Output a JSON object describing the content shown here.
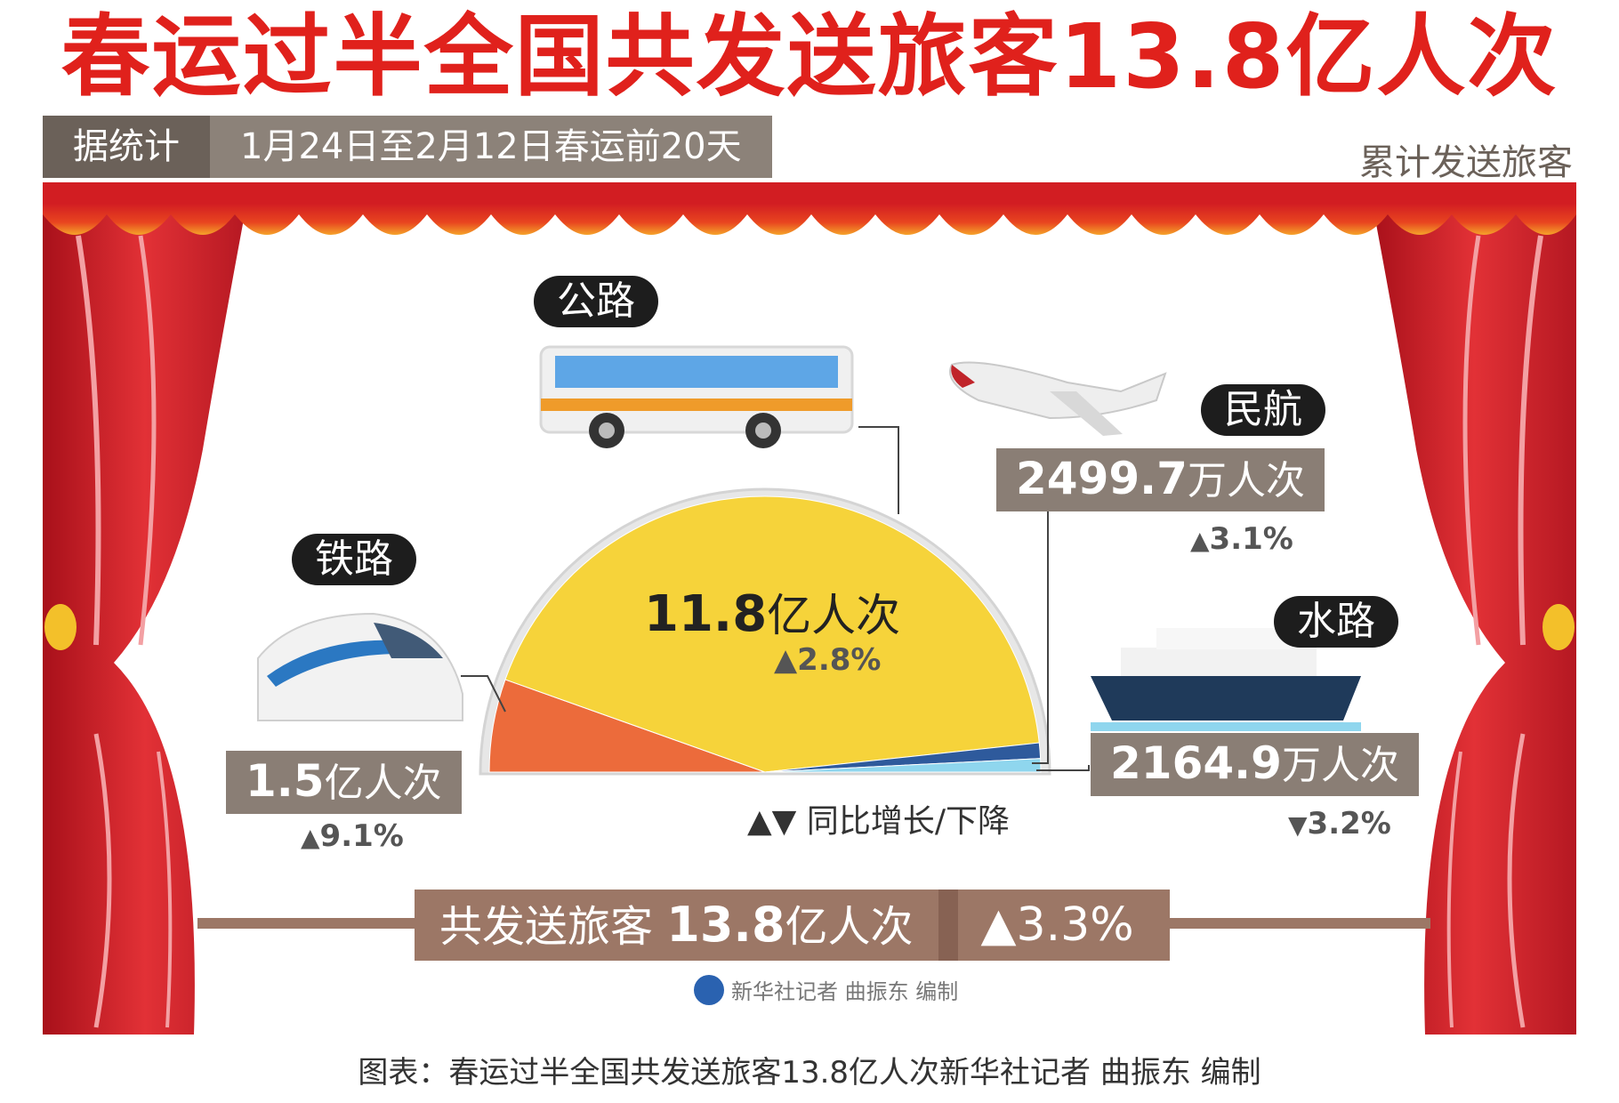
{
  "title": "春运过半全国共发送旅客13.8亿人次",
  "stats": {
    "label": "据统计",
    "range": "1月24日至2月12日春运前20天"
  },
  "cumulative_label": "累计发送旅客",
  "legend_note": "▲▼ 同比增长/下降",
  "modes": {
    "road": {
      "tag": "公路",
      "value": "11.8",
      "unit": "亿人次",
      "change": "2.8%",
      "direction": "up",
      "icon": "bus-icon"
    },
    "rail": {
      "tag": "铁路",
      "value": "1.5",
      "unit": "亿人次",
      "change": "9.1%",
      "direction": "up",
      "icon": "train-icon"
    },
    "air": {
      "tag": "民航",
      "value": "2499.7",
      "unit": "万人次",
      "change": "3.1%",
      "direction": "up",
      "icon": "airplane-icon"
    },
    "water": {
      "tag": "水路",
      "value": "2164.9",
      "unit": "万人次",
      "change": "3.2%",
      "direction": "down",
      "icon": "ship-icon"
    }
  },
  "total": {
    "label": "共发送旅客",
    "value": "13.8",
    "unit": "亿人次",
    "change": "3.3%",
    "direction": "up"
  },
  "credit": "新华社记者 曲振东 编制",
  "caption": "图表：春运过半全国共发送旅客13.8亿人次新华社记者 曲振东 编制",
  "colors": {
    "title_red": "#e0211c",
    "road": "#f6d33a",
    "rail": "#ec6b3b",
    "air": "#2e5a9c",
    "water": "#8fd6ee",
    "curtain": "#d9262b",
    "valance": "#f28a22",
    "box": "#8a7e75",
    "total_bar": "#9c7766"
  },
  "chart_data": {
    "type": "pie",
    "shape": "semicircle",
    "unit": "万人次",
    "categories": [
      "铁路",
      "公路",
      "民航",
      "水路"
    ],
    "values": [
      15000,
      118000,
      2499.7,
      2164.9
    ],
    "total": 138000,
    "yoy_change_percent": [
      9.1,
      2.8,
      3.1,
      -3.2
    ],
    "total_yoy_change_percent": 3.3
  }
}
